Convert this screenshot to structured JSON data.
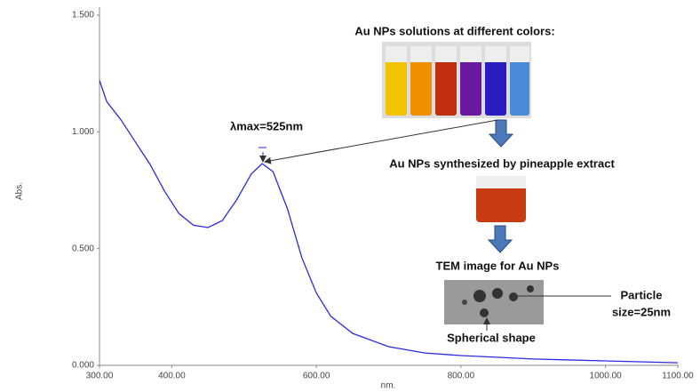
{
  "chart_data": {
    "type": "line",
    "x_label": "nm.",
    "y_label": "Abs.",
    "x": [
      300,
      310,
      330,
      350,
      370,
      390,
      410,
      430,
      450,
      470,
      490,
      510,
      525,
      540,
      560,
      580,
      600,
      620,
      650,
      700,
      750,
      800,
      900,
      1000,
      1100
    ],
    "values": [
      1.22,
      1.13,
      1.05,
      0.955,
      0.86,
      0.746,
      0.65,
      0.6,
      0.59,
      0.62,
      0.71,
      0.82,
      0.864,
      0.83,
      0.67,
      0.46,
      0.31,
      0.21,
      0.137,
      0.08,
      0.053,
      0.042,
      0.027,
      0.019,
      0.011
    ],
    "color": "#2a2ae0",
    "xlim": [
      300,
      1100
    ],
    "xticks": [
      {
        "value": 300,
        "label": "300.00"
      },
      {
        "value": 400,
        "label": "400.00"
      },
      {
        "value": 600,
        "label": "600.00"
      },
      {
        "value": 800,
        "label": "800.00"
      },
      {
        "value": 1000,
        "label": "1000.00"
      },
      {
        "value": 1100,
        "label": "1100.00"
      }
    ],
    "ylim": [
      0,
      1.5
    ],
    "yticks": [
      {
        "value": 0,
        "label": "0.000"
      },
      {
        "value": 0.5,
        "label": "0.500"
      },
      {
        "value": 1,
        "label": "1.000"
      },
      {
        "value": 1.5,
        "label": "1.500"
      }
    ],
    "annotations": [
      "λmax=525nm",
      "Au NPs solutions at different colors:",
      "Au NPs synthesized by pineapple extract",
      "TEM image for Au NPs",
      "Particle",
      "size=25nm",
      "Spherical shape"
    ]
  }
}
